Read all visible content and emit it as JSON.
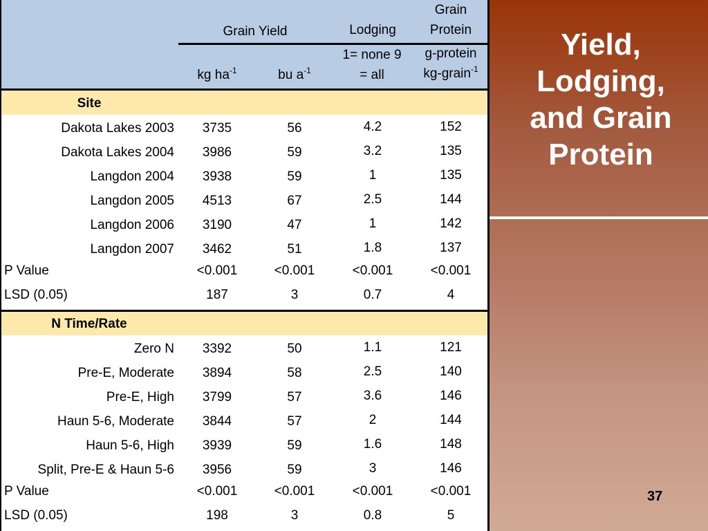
{
  "slide": {
    "title_lines": [
      "Yield,",
      "Lodging,",
      "and Grain",
      "Protein"
    ],
    "page_number": "37"
  },
  "table": {
    "group_headers": {
      "grain_yield": "Grain Yield",
      "lodging": "Lodging",
      "grain_protein_line1": "Grain",
      "grain_protein_line2": "Protein"
    },
    "unit_headers": {
      "kg_base": "kg ha",
      "kg_exp": "-1",
      "bu_base": "bu a",
      "bu_exp": "-1",
      "lodging_line1": "1= none 9",
      "lodging_line2": "= all",
      "protein_line1": "g-protein",
      "protein_base": "kg-grain",
      "protein_exp": "-1"
    },
    "sections": [
      {
        "label": "Site",
        "rows": [
          {
            "name": "Dakota Lakes 2003",
            "kg": "3735",
            "bu": "56",
            "lodging": "4.2",
            "protein": "152"
          },
          {
            "name": "Dakota Lakes 2004",
            "kg": "3986",
            "bu": "59",
            "lodging": "3.2",
            "protein": "135"
          },
          {
            "name": "Langdon 2004",
            "kg": "3938",
            "bu": "59",
            "lodging": "1",
            "protein": "135"
          },
          {
            "name": "Langdon 2005",
            "kg": "4513",
            "bu": "67",
            "lodging": "2.5",
            "protein": "144"
          },
          {
            "name": "Langdon 2006",
            "kg": "3190",
            "bu": "47",
            "lodging": "1",
            "protein": "142"
          },
          {
            "name": "Langdon 2007",
            "kg": "3462",
            "bu": "51",
            "lodging": "1.8",
            "protein": "137"
          }
        ],
        "p_value": {
          "label": "P Value",
          "kg": "<0.001",
          "bu": "<0.001",
          "lodging": "<0.001",
          "protein": "<0.001"
        },
        "lsd": {
          "label": "LSD (0.05)",
          "kg": "187",
          "bu": "3",
          "lodging": "0.7",
          "protein": "4"
        }
      },
      {
        "label": "N Time/Rate",
        "rows": [
          {
            "name": "Zero N",
            "kg": "3392",
            "bu": "50",
            "lodging": "1.1",
            "protein": "121"
          },
          {
            "name": "Pre-E, Moderate",
            "kg": "3894",
            "bu": "58",
            "lodging": "2.5",
            "protein": "140"
          },
          {
            "name": "Pre-E, High",
            "kg": "3799",
            "bu": "57",
            "lodging": "3.6",
            "protein": "146"
          },
          {
            "name": "Haun 5-6, Moderate",
            "kg": "3844",
            "bu": "57",
            "lodging": "2",
            "protein": "144"
          },
          {
            "name": "Haun 5-6, High",
            "kg": "3939",
            "bu": "59",
            "lodging": "1.6",
            "protein": "148"
          },
          {
            "name": "Split, Pre-E & Haun 5-6",
            "kg": "3956",
            "bu": "59",
            "lodging": "3",
            "protein": "146"
          }
        ],
        "p_value": {
          "label": "P Value",
          "kg": "<0.001",
          "bu": "<0.001",
          "lodging": "<0.001",
          "protein": "<0.001"
        },
        "lsd": {
          "label": "LSD (0.05)",
          "kg": "198",
          "bu": "3",
          "lodging": "0.8",
          "protein": "5"
        }
      }
    ]
  }
}
